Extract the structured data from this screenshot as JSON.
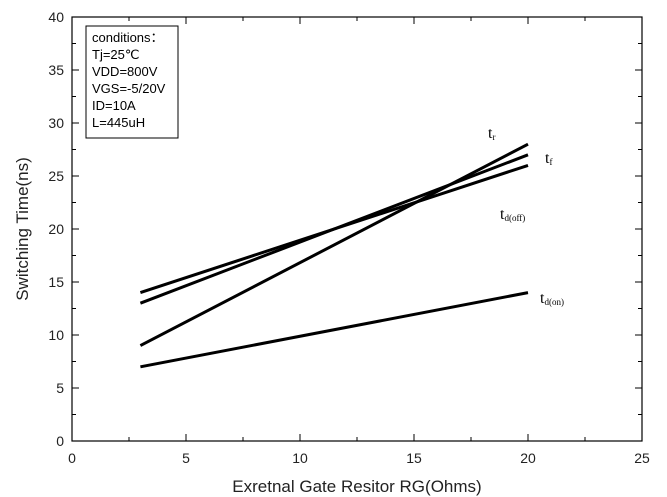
{
  "chart_data": {
    "type": "line",
    "xlabel": "Exretnal Gate Resitor RG(Ohms)",
    "ylabel": "Switching Time(ns)",
    "xlim": [
      0,
      25
    ],
    "ylim": [
      0,
      40
    ],
    "xticks": [
      0,
      5,
      10,
      15,
      20,
      25
    ],
    "yticks": [
      0,
      5,
      10,
      15,
      20,
      25,
      30,
      35,
      40
    ],
    "grid": false,
    "series": [
      {
        "name": "t_r",
        "label_main": "t",
        "label_sub": "r",
        "x": [
          3,
          20
        ],
        "y": [
          9,
          28
        ]
      },
      {
        "name": "t_f",
        "label_main": "t",
        "label_sub": "f",
        "x": [
          3,
          20
        ],
        "y": [
          13,
          27
        ]
      },
      {
        "name": "t_d(off)",
        "label_main": "t",
        "label_sub": "d(off)",
        "x": [
          3,
          20
        ],
        "y": [
          14,
          26
        ]
      },
      {
        "name": "t_d(on)",
        "label_main": "t",
        "label_sub": "d(on)",
        "x": [
          3,
          20
        ],
        "y": [
          7,
          14
        ]
      }
    ],
    "conditions": {
      "title": "conditions：",
      "lines": [
        "Tj=25℃",
        "VDD=800V",
        "VGS=-5/20V",
        "ID=10A",
        "L=445uH"
      ]
    }
  }
}
